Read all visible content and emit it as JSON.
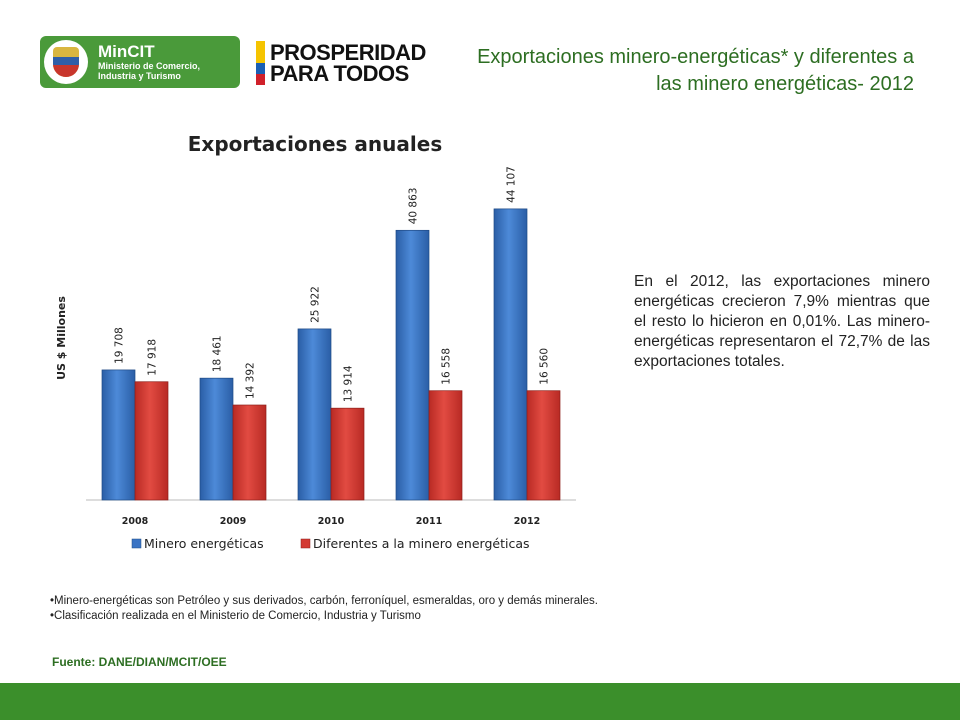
{
  "header": {
    "logo_mincit": {
      "title": "MinCIT",
      "subtitle_line1": "Ministerio de Comercio,",
      "subtitle_line2": "Industria y Turismo"
    },
    "logo_prosperidad": {
      "line1": "PROSPERIDAD",
      "line2": "PARA TODOS",
      "colors": [
        "#f5c400",
        "#1a5fb4",
        "#d0202a"
      ]
    },
    "slide_title": "Exportaciones minero-energéticas* y diferentes a las minero energéticas- 2012"
  },
  "chart_data": {
    "type": "bar",
    "title": "Exportaciones anuales",
    "ylabel": "US $ Millones",
    "xlabel": "",
    "categories": [
      "2008",
      "2009",
      "2010",
      "2011",
      "2012"
    ],
    "series": [
      {
        "name": "Minero energéticas",
        "values": [
          19708,
          18461,
          25922,
          40863,
          44107
        ],
        "labels": [
          "19 708",
          "18 461",
          "25 922",
          "40 863",
          "44 107"
        ],
        "color": "#3a74c4"
      },
      {
        "name": "Diferentes a la minero energéticas",
        "values": [
          17918,
          14392,
          13914,
          16558,
          16560
        ],
        "labels": [
          "17 918",
          "14 392",
          "13 914",
          "16 558",
          "16 560"
        ],
        "color": "#d33a33"
      }
    ],
    "ylim": [
      0,
      50000
    ],
    "grid": false,
    "legend": "bottom"
  },
  "note_text": "En el 2012, las exportaciones minero energéticas crecieron 7,9% mientras que el resto lo hicieron en 0,01%. Las minero-energéticas representaron el 72,7% de las exportaciones totales.",
  "footnotes": [
    "•Minero-energéticas son Petróleo y sus derivados, carbón, ferroníquel, esmeraldas, oro y demás minerales.",
    "•Clasificación realizada en el Ministerio de Comercio, Industria y Turismo"
  ],
  "source": "Fuente: DANE/DIAN/MCIT/OEE",
  "colors": {
    "brand_green": "#2d6e22",
    "footer_bar": "#3b8f2b"
  }
}
